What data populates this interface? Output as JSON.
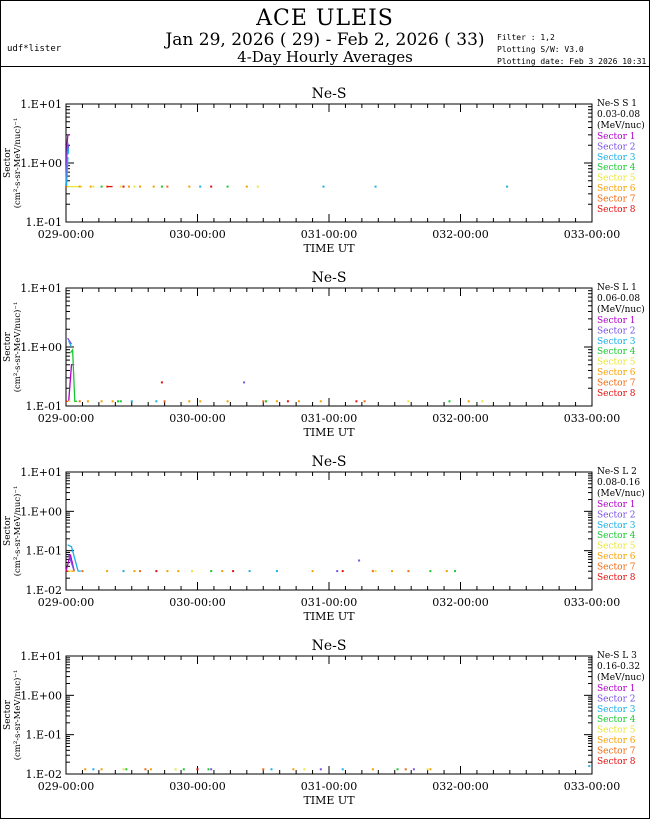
{
  "header": {
    "user": "udf*lister",
    "title": "ACE ULEIS",
    "date_range": "Jan 29, 2026 ( 29) - Feb  2, 2026 ( 33)",
    "subtitle": "4-Day Hourly Averages",
    "filter": "Filter : 1,2",
    "software": "Plotting S/W: V3.0",
    "plot_date": "Plotting date: Feb  3 2026 10:31"
  },
  "colors": {
    "Sector 1": "#b000c8",
    "Sector 2": "#7a50e6",
    "Sector 3": "#1aaee8",
    "Sector 4": "#18c830",
    "Sector 5": "#e6e63c",
    "Sector 6": "#f5a000",
    "Sector 7": "#f06a14",
    "Sector 8": "#e01010"
  },
  "chart_data": [
    {
      "type": "line",
      "title": "Ne-S",
      "species": "Ne-S S 1",
      "energy": "0.03-0.08",
      "units": "(MeV/nuc)",
      "ylabel": "Sector",
      "yunits": "(cm²-s-sr-MeV/nuc)⁻¹",
      "xlabel": "TIME UT",
      "xticks": [
        "029-00:00",
        "030-00:00",
        "031-00:00",
        "032-00:00",
        "033-00:00"
      ],
      "yticks": [
        "1.E+01",
        "1.E+00",
        "1.E-01"
      ],
      "ylim_exp": [
        -1,
        1
      ],
      "floor_exp": -0.4,
      "legend": [
        "Sector 1",
        "Sector 2",
        "Sector 3",
        "Sector 4",
        "Sector 5",
        "Sector 6",
        "Sector 7",
        "Sector 8"
      ],
      "series": [
        {
          "name": "Sector 1",
          "lines": [
            [
              [
                0.0,
                -0.4
              ],
              [
                0.2,
                0.3
              ],
              [
                0.3,
                0.44
              ],
              [
                0.4,
                0.48
              ]
            ]
          ],
          "points": []
        },
        {
          "name": "Sector 2",
          "lines": [
            [
              [
                0.0,
                -0.4
              ],
              [
                0.2,
                0.2
              ],
              [
                0.3,
                0.35
              ],
              [
                0.35,
                0.3
              ]
            ],
            [
              [
                0.4,
                0.2
              ],
              [
                0.45,
                0.3
              ]
            ]
          ],
          "points": []
        },
        {
          "name": "Sector 3",
          "lines": [
            [
              [
                0.1,
                -0.4
              ],
              [
                0.35,
                0.1
              ]
            ],
            [
              [
                0.4,
                0.15
              ],
              [
                0.45,
                0.25
              ]
            ]
          ],
          "points": [
            [
              24.5,
              -0.4
            ],
            [
              47.0,
              -0.4
            ],
            [
              56.5,
              -0.4
            ],
            [
              80.5,
              -0.4
            ]
          ]
        },
        {
          "name": "Sector 4",
          "lines": [],
          "points": [
            [
              6.5,
              -0.4
            ],
            [
              17.5,
              -0.4
            ],
            [
              29.5,
              -0.4
            ]
          ]
        },
        {
          "name": "Sector 5",
          "lines": [
            [
              [
                0.2,
                -0.4
              ],
              [
                3.0,
                -0.4
              ]
            ]
          ],
          "points": [
            [
              5.0,
              -0.4
            ],
            [
              10.0,
              -0.4
            ],
            [
              12.5,
              -0.4
            ],
            [
              35.0,
              -0.4
            ]
          ]
        },
        {
          "name": "Sector 6",
          "lines": [],
          "points": [
            [
              2.5,
              -0.4
            ],
            [
              4.5,
              -0.4
            ],
            [
              11.5,
              -0.4
            ],
            [
              13.5,
              -0.4
            ],
            [
              16.0,
              -0.4
            ],
            [
              22.5,
              -0.4
            ],
            [
              33.0,
              -0.4
            ]
          ]
        },
        {
          "name": "Sector 7",
          "lines": [
            [
              [
                0.0,
                -0.4
              ],
              [
                0.2,
                -0.4
              ]
            ]
          ],
          "points": [
            [
              7.5,
              -0.4
            ],
            [
              18.5,
              -0.4
            ]
          ]
        },
        {
          "name": "Sector 8",
          "lines": [
            [
              [
                7.5,
                -0.4
              ],
              [
                8.5,
                -0.4
              ]
            ]
          ],
          "points": [
            [
              10.5,
              -0.4
            ],
            [
              26.5,
              -0.4
            ]
          ]
        }
      ]
    },
    {
      "type": "line",
      "title": "Ne-S",
      "species": "Ne-S L 1",
      "energy": "0.06-0.08",
      "units": "(MeV/nuc)",
      "ylabel": "Sector",
      "yunits": "(cm²-s-sr-MeV/nuc)⁻¹",
      "xlabel": "TIME UT",
      "xticks": [
        "029-00:00",
        "030-00:00",
        "031-00:00",
        "032-00:00",
        "033-00:00"
      ],
      "yticks": [
        "1.E+01",
        "1.E+00",
        "1.E-01"
      ],
      "ylim_exp": [
        -1,
        1
      ],
      "floor_exp": -0.92,
      "legend": [
        "Sector 1",
        "Sector 2",
        "Sector 3",
        "Sector 4",
        "Sector 5",
        "Sector 6",
        "Sector 7",
        "Sector 8"
      ],
      "series": [
        {
          "name": "Sector 1",
          "lines": [
            [
              [
                0.5,
                -0.92
              ],
              [
                1.0,
                -0.3
              ],
              [
                1.5,
                -0.3
              ]
            ]
          ],
          "points": []
        },
        {
          "name": "Sector 2",
          "lines": [
            [
              [
                0.3,
                0.15
              ],
              [
                1.0,
                0.05
              ]
            ]
          ],
          "points": [
            [
              32.5,
              -0.6
            ]
          ]
        },
        {
          "name": "Sector 3",
          "lines": [
            [
              [
                0.5,
                0.1
              ],
              [
                1.0,
                0.0
              ]
            ]
          ],
          "points": [
            [
              12.0,
              -0.92
            ],
            [
              16.5,
              -0.92
            ]
          ]
        },
        {
          "name": "Sector 4",
          "lines": [
            [
              [
                0.8,
                -0.1
              ],
              [
                1.2,
                -0.05
              ],
              [
                1.6,
                -0.92
              ],
              [
                2.0,
                -0.92
              ]
            ]
          ],
          "points": [
            [
              9.5,
              -0.92
            ],
            [
              10.0,
              -0.92
            ],
            [
              36.5,
              -0.92
            ],
            [
              70.0,
              -0.92
            ]
          ]
        },
        {
          "name": "Sector 5",
          "lines": [
            [
              [
                0.3,
                -0.92
              ],
              [
                0.8,
                -0.92
              ]
            ]
          ],
          "points": [
            [
              62.5,
              -0.92
            ],
            [
              76.0,
              -0.92
            ]
          ]
        },
        {
          "name": "Sector 6",
          "lines": [],
          "points": [
            [
              4.0,
              -0.92
            ],
            [
              6.5,
              -0.92
            ],
            [
              8.5,
              -0.92
            ],
            [
              22.5,
              -0.92
            ],
            [
              24.5,
              -0.92
            ],
            [
              29.5,
              -0.92
            ],
            [
              38.5,
              -0.92
            ],
            [
              42.5,
              -0.92
            ],
            [
              46.5,
              -0.92
            ],
            [
              73.5,
              -0.92
            ]
          ]
        },
        {
          "name": "Sector 7",
          "lines": [],
          "points": [
            [
              2.5,
              -0.92
            ],
            [
              18.0,
              -0.92
            ],
            [
              36.0,
              -0.92
            ],
            [
              54.5,
              -0.92
            ]
          ]
        },
        {
          "name": "Sector 8",
          "lines": [
            [
              [
                0.0,
                -0.92
              ],
              [
                0.3,
                -0.92
              ]
            ]
          ],
          "points": [
            [
              17.5,
              -0.6
            ],
            [
              40.5,
              -0.92
            ],
            [
              53.0,
              -0.92
            ]
          ]
        }
      ]
    },
    {
      "type": "line",
      "title": "Ne-S",
      "species": "Ne-S L 2",
      "energy": "0.08-0.16",
      "units": "(MeV/nuc)",
      "ylabel": "Sector",
      "yunits": "(cm²-s-sr-MeV/nuc)⁻¹",
      "xlabel": "TIME UT",
      "xticks": [
        "029-00:00",
        "030-00:00",
        "031-00:00",
        "032-00:00",
        "033-00:00"
      ],
      "yticks": [
        "1.E+01",
        "1.E+00",
        "1.E-01",
        "1.E-02"
      ],
      "ylim_exp": [
        -2,
        1
      ],
      "floor_exp": -1.52,
      "legend": [
        "Sector 1",
        "Sector 2",
        "Sector 3",
        "Sector 4",
        "Sector 5",
        "Sector 6",
        "Sector 7",
        "Sector 8"
      ],
      "series": [
        {
          "name": "Sector 1",
          "lines": [
            [
              [
                0.0,
                -1.52
              ],
              [
                0.8,
                -1.1
              ],
              [
                1.5,
                -1.52
              ]
            ]
          ],
          "points": []
        },
        {
          "name": "Sector 2",
          "lines": [
            [
              [
                0.5,
                -1.1
              ],
              [
                1.5,
                -1.52
              ]
            ]
          ],
          "points": [
            [
              53.5,
              -1.25
            ],
            [
              49.5,
              -1.52
            ]
          ]
        },
        {
          "name": "Sector 3",
          "lines": [
            [
              [
                0.3,
                -0.85
              ],
              [
                1.0,
                -0.9
              ],
              [
                2.2,
                -1.52
              ],
              [
                2.7,
                -1.52
              ]
            ]
          ],
          "points": [
            [
              10.5,
              -1.52
            ],
            [
              33.5,
              -1.52
            ],
            [
              38.5,
              -1.52
            ]
          ]
        },
        {
          "name": "Sector 4",
          "lines": [],
          "points": [
            [
              26.5,
              -1.52
            ],
            [
              66.5,
              -1.52
            ],
            [
              71.0,
              -1.52
            ]
          ]
        },
        {
          "name": "Sector 5",
          "lines": [
            [
              [
                0.2,
                -1.52
              ],
              [
                1.2,
                -1.52
              ]
            ]
          ],
          "points": [
            [
              23.0,
              -1.52
            ],
            [
              56.5,
              -1.52
            ]
          ]
        },
        {
          "name": "Sector 6",
          "lines": [
            [
              [
                1.0,
                -1.52
              ],
              [
                1.6,
                -1.52
              ]
            ]
          ],
          "points": [
            [
              7.5,
              -1.52
            ],
            [
              12.5,
              -1.52
            ],
            [
              18.5,
              -1.52
            ],
            [
              20.5,
              -1.52
            ],
            [
              28.5,
              -1.52
            ],
            [
              45.0,
              -1.52
            ],
            [
              59.5,
              -1.52
            ],
            [
              69.5,
              -1.52
            ]
          ]
        },
        {
          "name": "Sector 7",
          "lines": [],
          "points": [
            [
              3.0,
              -1.52
            ],
            [
              13.5,
              -1.52
            ],
            [
              56.0,
              -1.52
            ],
            [
              62.5,
              -1.52
            ]
          ]
        },
        {
          "name": "Sector 8",
          "lines": [
            [
              [
                0.0,
                -1.52
              ],
              [
                0.4,
                -1.52
              ]
            ]
          ],
          "points": [
            [
              16.5,
              -1.52
            ],
            [
              30.5,
              -1.52
            ],
            [
              50.5,
              -1.52
            ]
          ]
        }
      ]
    },
    {
      "type": "line",
      "title": "Ne-S",
      "species": "Ne-S L 3",
      "energy": "0.16-0.32",
      "units": "(MeV/nuc)",
      "ylabel": "Sector",
      "yunits": "(cm²-s-sr-MeV/nuc)⁻¹",
      "xlabel": "TIME UT",
      "xticks": [
        "029-00:00",
        "030-00:00",
        "031-00:00",
        "032-00:00",
        "033-00:00"
      ],
      "yticks": [
        "1.E+01",
        "1.E+00",
        "1.E-01",
        "1.E-02"
      ],
      "ylim_exp": [
        -2,
        1
      ],
      "floor_exp": -1.88,
      "legend": [
        "Sector 1",
        "Sector 2",
        "Sector 3",
        "Sector 4",
        "Sector 5",
        "Sector 6",
        "Sector 7",
        "Sector 8"
      ],
      "series": [
        {
          "name": "Sector 1",
          "lines": [],
          "points": []
        },
        {
          "name": "Sector 2",
          "lines": [],
          "points": [
            [
              26.5,
              -1.88
            ],
            [
              46.5,
              -1.88
            ],
            [
              63.5,
              -1.88
            ]
          ]
        },
        {
          "name": "Sector 3",
          "lines": [],
          "points": [
            [
              5.0,
              -1.88
            ],
            [
              37.5,
              -1.88
            ],
            [
              50.5,
              -1.88
            ],
            [
              95.5,
              -1.8
            ]
          ]
        },
        {
          "name": "Sector 4",
          "lines": [],
          "points": [
            [
              11.0,
              -1.88
            ],
            [
              21.5,
              -1.88
            ],
            [
              26.0,
              -1.88
            ],
            [
              60.5,
              -1.88
            ]
          ]
        },
        {
          "name": "Sector 5",
          "lines": [],
          "points": [
            [
              10.5,
              -1.88
            ],
            [
              20.0,
              -1.88
            ],
            [
              43.5,
              -1.88
            ],
            [
              66.0,
              -1.88
            ]
          ]
        },
        {
          "name": "Sector 6",
          "lines": [],
          "points": [
            [
              3.5,
              -1.88
            ],
            [
              6.5,
              -1.88
            ],
            [
              15.5,
              -1.88
            ],
            [
              41.5,
              -1.88
            ],
            [
              56.0,
              -1.88
            ],
            [
              66.5,
              -1.88
            ]
          ]
        },
        {
          "name": "Sector 7",
          "lines": [],
          "points": [
            [
              14.5,
              -1.88
            ],
            [
              36.0,
              -1.88
            ],
            [
              62.0,
              -1.88
            ]
          ]
        },
        {
          "name": "Sector 8",
          "lines": [],
          "points": [
            [
              24.0,
              -1.88
            ]
          ]
        }
      ]
    }
  ]
}
